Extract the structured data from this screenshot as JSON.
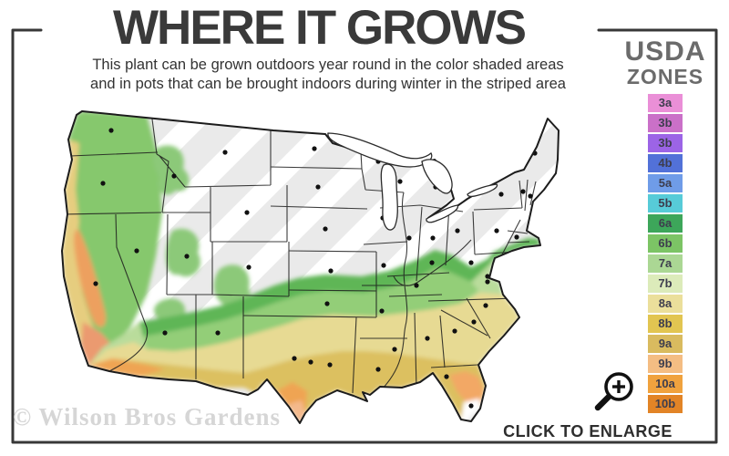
{
  "header": {
    "title": "WHERE IT GROWS",
    "subtitle_line1": "This plant can be grown outdoors year round in the color shaded areas",
    "subtitle_line2": "and in pots that can be brought indoors during winter in the striped area"
  },
  "legend": {
    "title_line1": "USDA",
    "title_line2": "ZONES",
    "zones": [
      {
        "label": "3a",
        "color": "#ea8fd7"
      },
      {
        "label": "3b",
        "color": "#ca70c8"
      },
      {
        "label": "3b",
        "color": "#9c64e6"
      },
      {
        "label": "4b",
        "color": "#5271d8"
      },
      {
        "label": "5a",
        "color": "#6f9ce8"
      },
      {
        "label": "5b",
        "color": "#57cbd8"
      },
      {
        "label": "6a",
        "color": "#3da65a"
      },
      {
        "label": "6b",
        "color": "#7cc465"
      },
      {
        "label": "7a",
        "color": "#abd794"
      },
      {
        "label": "7b",
        "color": "#dcebba"
      },
      {
        "label": "8a",
        "color": "#ebdf9b"
      },
      {
        "label": "8b",
        "color": "#e2c551"
      },
      {
        "label": "9a",
        "color": "#d9bb5f"
      },
      {
        "label": "9b",
        "color": "#f4bd83"
      },
      {
        "label": "10a",
        "color": "#f0a23e"
      },
      {
        "label": "10b",
        "color": "#e28426"
      }
    ]
  },
  "map": {
    "base_color": "#eaeaea",
    "stripe_color": "#ffffff",
    "outline_color": "#1c1c1c",
    "state_line_color": "#1c1c1c",
    "dot_color": "#111111",
    "region_colors": {
      "green": "#5eb657",
      "light_green": "#93ce78",
      "pale_green": "#b9dc9b",
      "khaki": "#e7da93",
      "tan": "#dcc061",
      "orange": "#efa452",
      "salmon": "#f4b98c",
      "pnw_green": "#86c86d",
      "coast_yellow": "#e6cd7f",
      "valley_orange": "#eda05f"
    }
  },
  "footer": {
    "watermark": "© Wilson Bros Gardens",
    "enlarge_label": "CLICK TO ENLARGE",
    "magnifier_icon": "magnifier-plus"
  },
  "frame_color": "#383838"
}
